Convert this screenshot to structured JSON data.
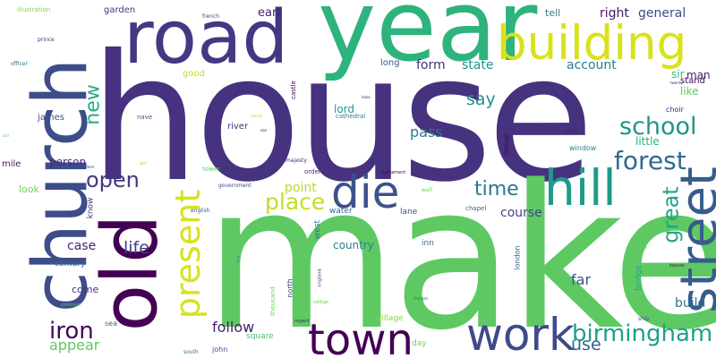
{
  "wordcloud": {
    "background": "#ffffff",
    "words": [
      {
        "text": "house",
        "color": "#46327e"
      },
      {
        "text": "make",
        "color": "#5ec962"
      },
      {
        "text": "year",
        "color": "#2eb37c"
      },
      {
        "text": "road",
        "color": "#453781"
      },
      {
        "text": "church",
        "color": "#3d4d8a"
      },
      {
        "text": "old",
        "color": "#440154"
      },
      {
        "text": "building",
        "color": "#d8e219"
      },
      {
        "text": "street",
        "color": "#365c8d"
      },
      {
        "text": "hill",
        "color": "#1f9a8a"
      },
      {
        "text": "die",
        "color": "#3b528b"
      },
      {
        "text": "town",
        "color": "#440154"
      },
      {
        "text": "work",
        "color": "#3e4a89"
      },
      {
        "text": "present",
        "color": "#d8e219"
      },
      {
        "text": "forest",
        "color": "#31688e"
      },
      {
        "text": "school",
        "color": "#1f968b"
      },
      {
        "text": "birmingham",
        "color": "#1fa088"
      },
      {
        "text": "open",
        "color": "#443983"
      },
      {
        "text": "place",
        "color": "#c2df23"
      },
      {
        "text": "iron",
        "color": "#450559"
      },
      {
        "text": "great",
        "color": "#20a486"
      },
      {
        "text": "time",
        "color": "#2a788e"
      },
      {
        "text": "new",
        "color": "#25ab82"
      },
      {
        "text": "life",
        "color": "#424086"
      },
      {
        "text": "say",
        "color": "#21918c"
      },
      {
        "text": "use",
        "color": "#34608d"
      },
      {
        "text": "follow",
        "color": "#481c6e"
      },
      {
        "text": "appear",
        "color": "#5ec962"
      },
      {
        "text": "far",
        "color": "#3b528b"
      },
      {
        "text": "pass",
        "color": "#2a788e"
      },
      {
        "text": "form",
        "color": "#46337f"
      },
      {
        "text": "state",
        "color": "#21918c"
      },
      {
        "text": "account",
        "color": "#27808e"
      },
      {
        "text": "right",
        "color": "#481467"
      },
      {
        "text": "general",
        "color": "#3e4a89"
      },
      {
        "text": "course",
        "color": "#414487"
      },
      {
        "text": "case",
        "color": "#482475"
      },
      {
        "text": "point",
        "color": "#b5de2b"
      },
      {
        "text": "build",
        "color": "#2c728e"
      },
      {
        "text": "country",
        "color": "#26828e"
      },
      {
        "text": "earl",
        "color": "#481f70"
      },
      {
        "text": "lord",
        "color": "#1f9e89"
      },
      {
        "text": "person",
        "color": "#482878"
      },
      {
        "text": "little",
        "color": "#2db27d"
      },
      {
        "text": "sir",
        "color": "#3aba76"
      },
      {
        "text": "man",
        "color": "#482071"
      },
      {
        "text": "stand",
        "color": "#440256"
      },
      {
        "text": "like",
        "color": "#5ec962"
      },
      {
        "text": "come",
        "color": "#46337f"
      },
      {
        "text": "look",
        "color": "#75d054"
      },
      {
        "text": "century",
        "color": "#31688e"
      },
      {
        "text": "mile",
        "color": "#481a6c"
      },
      {
        "text": "james",
        "color": "#3b528b"
      },
      {
        "text": "tell",
        "color": "#2a788e"
      },
      {
        "text": "good",
        "color": "#c8e020"
      },
      {
        "text": "long",
        "color": "#375a8c"
      },
      {
        "text": "garden",
        "color": "#46327e"
      },
      {
        "text": "river",
        "color": "#472d7b"
      },
      {
        "text": "lane",
        "color": "#3e4a89"
      },
      {
        "text": "inn",
        "color": "#31688e"
      },
      {
        "text": "day",
        "color": "#7ad151"
      },
      {
        "text": "square",
        "color": "#4ac16d"
      },
      {
        "text": "village",
        "color": "#86d549"
      },
      {
        "text": "bridge",
        "color": "#22a785"
      },
      {
        "text": "water",
        "color": "#2f6c8e"
      },
      {
        "text": "west",
        "color": "#2a788e"
      },
      {
        "text": "north",
        "color": "#3f4788"
      },
      {
        "text": "know",
        "color": "#453781"
      },
      {
        "text": "window",
        "color": "#27808e"
      },
      {
        "text": "east",
        "color": "#482576"
      },
      {
        "text": "choir",
        "color": "#481769"
      },
      {
        "text": "london",
        "color": "#33638d"
      },
      {
        "text": "chapel",
        "color": "#31688e"
      },
      {
        "text": "sea",
        "color": "#2c728e"
      },
      {
        "text": "john",
        "color": "#3b528b"
      },
      {
        "text": "thousand",
        "color": "#6ece58"
      },
      {
        "text": "bishop",
        "color": "#440154"
      },
      {
        "text": "cathedral",
        "color": "#2a788e"
      },
      {
        "text": "castle",
        "color": "#440154"
      },
      {
        "text": "nave",
        "color": "#3b528b"
      },
      {
        "text": "order",
        "color": "#482878"
      },
      {
        "text": "tower",
        "color": "#5ec962"
      },
      {
        "text": "majesty",
        "color": "#482878"
      },
      {
        "text": "government",
        "color": "#3e4a89"
      },
      {
        "text": "english",
        "color": "#3b528b"
      },
      {
        "text": "illustration",
        "color": "#86d549"
      },
      {
        "text": "french",
        "color": "#3e4a89"
      },
      {
        "text": "prince",
        "color": "#482878"
      },
      {
        "text": "officer",
        "color": "#2a788e"
      },
      {
        "text": "parliament",
        "color": "#440154"
      },
      {
        "text": "wall",
        "color": "#6ece58"
      },
      {
        "text": "troops",
        "color": "#2a788e"
      },
      {
        "text": "regard",
        "color": "#482878"
      },
      {
        "text": "oddige",
        "color": "#7ad151"
      },
      {
        "text": "england",
        "color": "#3e4a89"
      },
      {
        "text": "common",
        "color": "#5ec962"
      },
      {
        "text": "south",
        "color": "#2a788e"
      },
      {
        "text": "act",
        "color": "#b5de2b"
      },
      {
        "text": "kingdom",
        "color": "#3e4a89"
      },
      {
        "text": "family",
        "color": "#b5de2b"
      },
      {
        "text": "son",
        "color": "#440154"
      },
      {
        "text": "king",
        "color": "#21918c"
      },
      {
        "text": "soil",
        "color": "#5ec962"
      },
      {
        "text": "duke",
        "color": "#482878"
      },
      {
        "text": "authority",
        "color": "#6ece58"
      },
      {
        "text": "footnote",
        "color": "#440154"
      },
      {
        "text": "ship",
        "color": "#3b528b"
      },
      {
        "text": "twenty",
        "color": "#482878"
      }
    ]
  }
}
